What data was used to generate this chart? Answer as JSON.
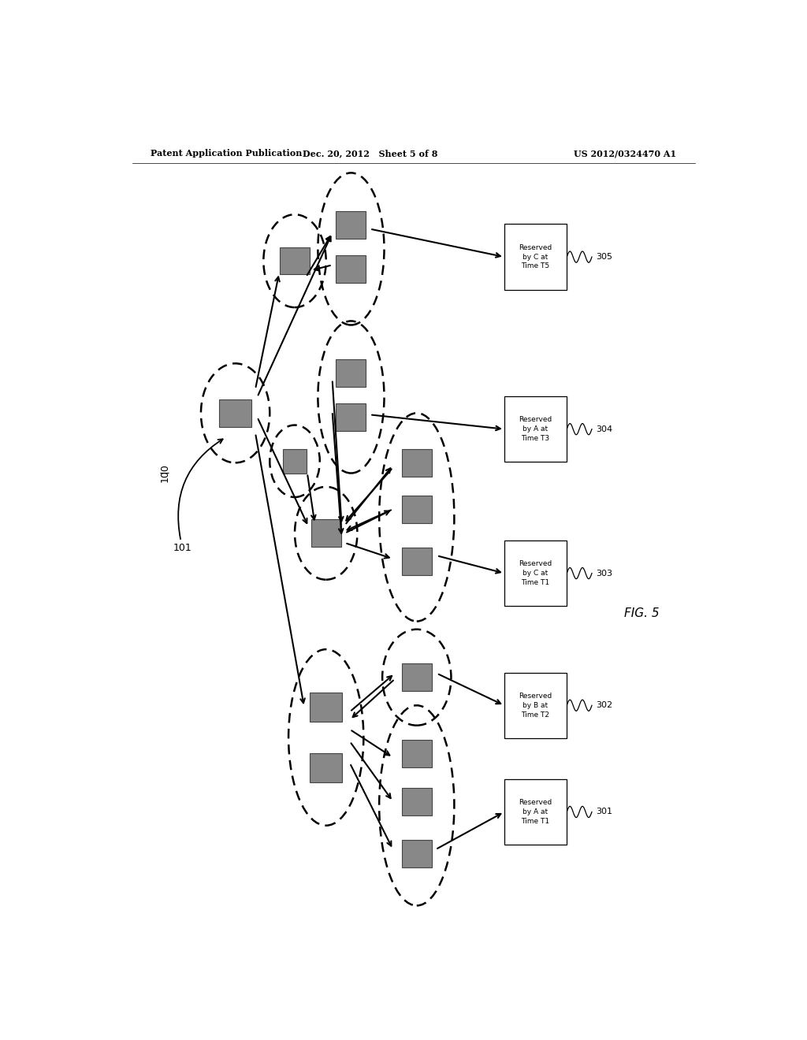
{
  "header_left": "Patent Application Publication",
  "header_mid": "Dec. 20, 2012   Sheet 5 of 8",
  "header_right": "US 2012/0324470 A1",
  "fig_label": "FIG. 5",
  "label_100": "100",
  "label_101": "101",
  "label_boxes": [
    {
      "id": "305",
      "text": "Reserved\nby C at\nTime T5",
      "bx": 0.695,
      "by": 0.835
    },
    {
      "id": "304",
      "text": "Reserved\nby A at\nTime T3",
      "bx": 0.695,
      "by": 0.62
    },
    {
      "id": "303",
      "text": "Reserved\nby C at\nTime T1",
      "bx": 0.695,
      "by": 0.44
    },
    {
      "id": "302",
      "text": "Reserved\nby B at\nTime T2",
      "bx": 0.695,
      "by": 0.275
    },
    {
      "id": "301",
      "text": "Reserved\nby A at\nTime T1",
      "bx": 0.695,
      "by": 0.142
    }
  ],
  "background": "#ffffff",
  "rect_fill": "#888888",
  "rect_edge": "#555555"
}
